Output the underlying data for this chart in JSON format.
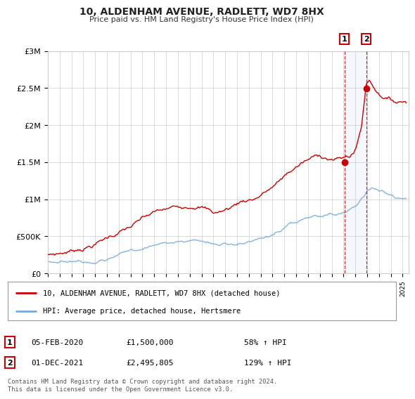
{
  "title": "10, ALDENHAM AVENUE, RADLETT, WD7 8HX",
  "subtitle": "Price paid vs. HM Land Registry's House Price Index (HPI)",
  "legend_line1": "10, ALDENHAM AVENUE, RADLETT, WD7 8HX (detached house)",
  "legend_line2": "HPI: Average price, detached house, Hertsmere",
  "annotation1_date": "05-FEB-2020",
  "annotation1_price": "£1,500,000",
  "annotation1_hpi": "58% ↑ HPI",
  "annotation1_year": 2020.08,
  "annotation1_value": 1500000,
  "annotation2_date": "01-DEC-2021",
  "annotation2_price": "£2,495,805",
  "annotation2_hpi": "129% ↑ HPI",
  "annotation2_year": 2021.92,
  "annotation2_value": 2495805,
  "footer": "Contains HM Land Registry data © Crown copyright and database right 2024.\nThis data is licensed under the Open Government Licence v3.0.",
  "red_color": "#cc0000",
  "blue_color": "#7aaadd",
  "background_color": "#ffffff",
  "grid_color": "#cccccc",
  "ylim": [
    0,
    3000000
  ],
  "yticks": [
    0,
    500000,
    1000000,
    1500000,
    2000000,
    2500000,
    3000000
  ],
  "ytick_labels": [
    "£0",
    "£500K",
    "£1M",
    "£1.5M",
    "£2M",
    "£2.5M",
    "£3M"
  ],
  "xlim_start": 1995.0,
  "xlim_end": 2025.5
}
